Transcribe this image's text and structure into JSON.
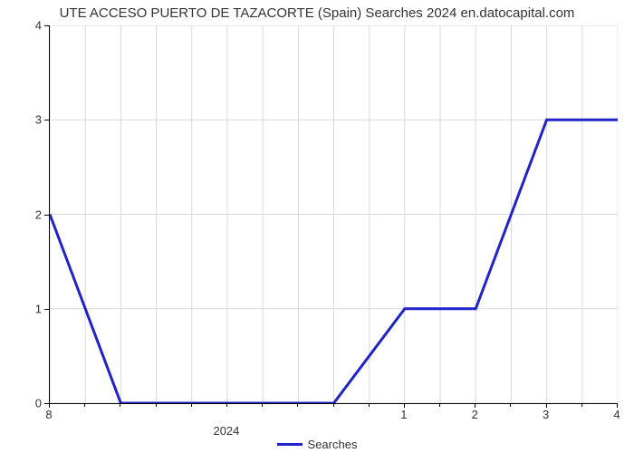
{
  "chart": {
    "type": "line",
    "title": "UTE ACCESO PUERTO DE TAZACORTE (Spain) Searches 2024 en.datocapital.com",
    "title_fontsize": 15,
    "title_color": "#333333",
    "background_color": "#ffffff",
    "grid_color": "#d9d9d9",
    "axis_color": "#000000",
    "tick_font_size": 13,
    "tick_color": "#333333",
    "x_axis": {
      "label": "2024",
      "label_fontsize": 13,
      "ticks": [
        "8",
        "1",
        "2",
        "3",
        "4"
      ],
      "xlim_categorical": true
    },
    "y_axis": {
      "ylim": [
        0,
        4
      ],
      "ticks": [
        0,
        1,
        2,
        3,
        4
      ]
    },
    "series": [
      {
        "name": "Searches",
        "color": "#1f23c9",
        "line_width": 3,
        "x_index": [
          0,
          1,
          2,
          3,
          4,
          5,
          6,
          7,
          8
        ],
        "y": [
          2,
          0,
          0,
          0,
          0,
          1,
          1,
          3,
          3
        ]
      }
    ],
    "legend": {
      "position": "bottom-center",
      "items": [
        {
          "label": "Searches",
          "color": "#1f23c9"
        }
      ]
    }
  }
}
